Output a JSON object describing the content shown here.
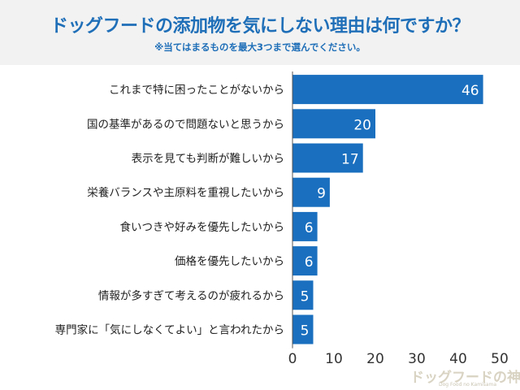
{
  "chart_data": {
    "type": "bar",
    "orientation": "horizontal",
    "title": "ドッグフードの添加物を気にしない理由は何ですか？",
    "subtitle": "※当てはまるものを最大3つまで選んでください。",
    "categories": [
      "これまで特に困ったことがないから",
      "国の基準があるので問題ないと思うから",
      "表示を見ても判断が難しいから",
      "栄養バランスや主原料を重視したいから",
      "食いつきや好みを優先したいから",
      "価格を優先したいから",
      "情報が多すぎて考えるのが疲れるから",
      "専門家に「気にしなくてよい」と言われたから"
    ],
    "values": [
      46,
      20,
      17,
      9,
      6,
      6,
      5,
      5
    ],
    "xlim": [
      0,
      50
    ],
    "xticks": [
      0,
      10,
      20,
      30,
      40,
      50
    ],
    "grid": false,
    "bar_color": "#1a6fbf"
  },
  "logo": {
    "text": "ドッグフードの神様",
    "sub": "Dog Food no Kamisama"
  }
}
